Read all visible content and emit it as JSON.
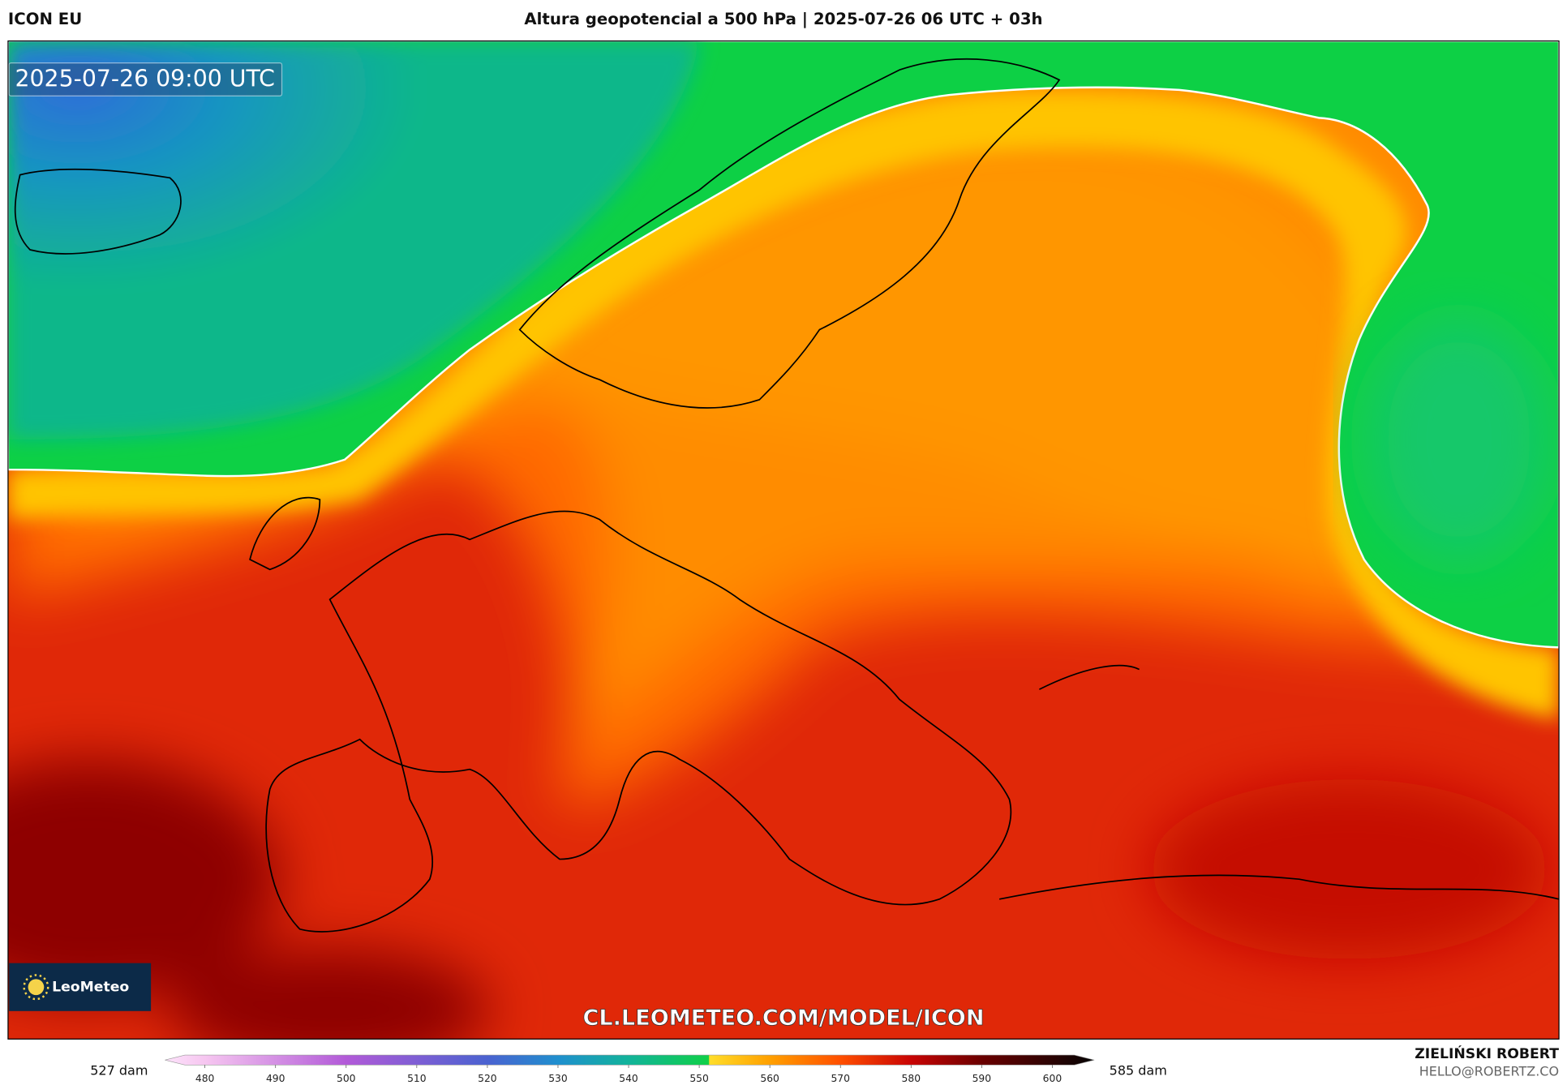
{
  "header": {
    "model": "ICON EU",
    "title": "Altura geopotencial a 500 hPa | 2025-07-26 06 UTC + 03h"
  },
  "map": {
    "valid_time": "2025-07-26 09:00 UTC",
    "watermark": "CL.LEOMETEO.COM/MODEL/ICON",
    "logo": "LeoMeteo"
  },
  "colorbar": {
    "min_label": "527 dam",
    "max_label": "585 dam",
    "ticks": [
      480,
      490,
      500,
      510,
      520,
      530,
      540,
      550,
      560,
      570,
      580,
      590,
      600
    ]
  },
  "credits": {
    "author": "ZIELIŃSKI ROBERT",
    "contact": "HELLO@ROBERTZ.CO"
  }
}
